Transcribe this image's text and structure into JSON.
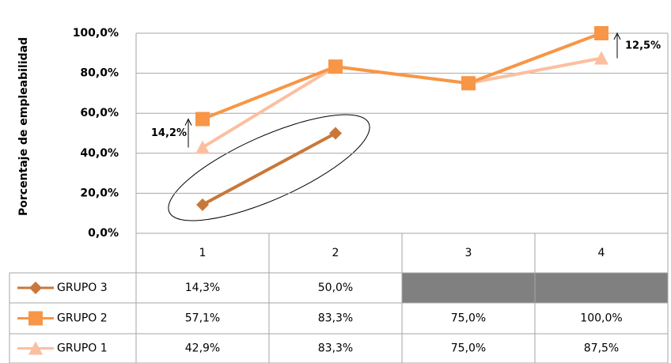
{
  "chart_data": {
    "type": "line",
    "ylabel": "Porcentaje de empleabilidad",
    "categories": [
      "1",
      "2",
      "3",
      "4"
    ],
    "series": [
      {
        "name": "GRUPO 3",
        "color": "#c8783a",
        "marker": "diamond",
        "values": [
          14.3,
          50.0,
          null,
          null
        ],
        "value_labels": [
          "14,3%",
          "50,0%",
          null,
          null
        ]
      },
      {
        "name": "GRUPO 2",
        "color": "#f79646",
        "marker": "square",
        "values": [
          57.1,
          83.3,
          75.0,
          100.0
        ],
        "value_labels": [
          "57,1%",
          "83,3%",
          "75,0%",
          "100,0%"
        ]
      },
      {
        "name": "GRUPO 1",
        "color": "#fbbfa0",
        "marker": "triangle",
        "values": [
          42.9,
          83.3,
          75.0,
          87.5
        ],
        "value_labels": [
          "42,9%",
          "83,3%",
          "75,0%",
          "87,5%"
        ]
      }
    ],
    "ylim": [
      0,
      100
    ],
    "yticks": [
      {
        "value": 0,
        "label": "0,0%"
      },
      {
        "value": 20,
        "label": "20,0%"
      },
      {
        "value": 40,
        "label": "40,0%"
      },
      {
        "value": 60,
        "label": "60,0%"
      },
      {
        "value": 80,
        "label": "80,0%"
      },
      {
        "value": 100,
        "label": "100,0%"
      }
    ],
    "grid": true,
    "annotations": [
      "14,2%",
      "12,5%"
    ]
  }
}
